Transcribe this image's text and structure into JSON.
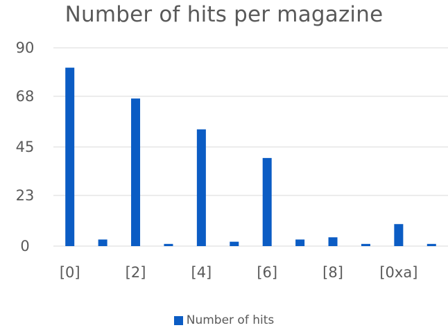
{
  "chart_data": {
    "type": "bar",
    "title": "Number of hits per magazine",
    "xlabel": "",
    "ylabel": "",
    "ylim": [
      0,
      90
    ],
    "yticks": [
      "0",
      "23",
      "45",
      "68",
      "90"
    ],
    "x_tick_labels": [
      "[0]",
      "[2]",
      "[4]",
      "[6]",
      "[8]",
      "[0xa]"
    ],
    "grid": true,
    "legend_position": "bottom",
    "series": [
      {
        "name": "Number of hits",
        "color": "#0b5cc4",
        "values": [
          81,
          3,
          67,
          1,
          53,
          2,
          40,
          3,
          4,
          1,
          10,
          1
        ]
      }
    ]
  }
}
